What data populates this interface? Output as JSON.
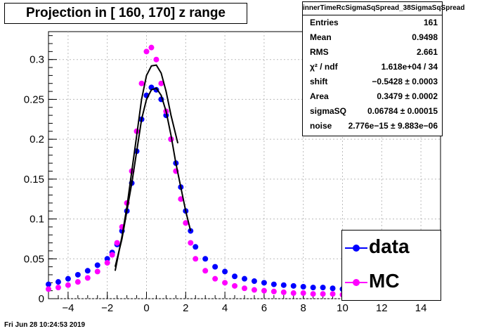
{
  "chart_data": {
    "type": "scatter",
    "title": "Projection in [ 160, 170] z range",
    "xlim": [
      -5,
      15
    ],
    "ylim": [
      0,
      0.335
    ],
    "x_ticks": [
      "−4",
      "−2",
      "0",
      "2",
      "4",
      "6",
      "8",
      "10",
      "12",
      "14"
    ],
    "x_tick_values": [
      -4,
      -2,
      0,
      2,
      4,
      6,
      8,
      10,
      12,
      14
    ],
    "y_ticks": [
      "0",
      "0.05",
      "0.1",
      "0.15",
      "0.2",
      "0.25",
      "0.3"
    ],
    "y_tick_values": [
      0,
      0.05,
      0.1,
      0.15,
      0.2,
      0.25,
      0.3
    ],
    "grid": true,
    "legend_position": "bottom-right",
    "series": [
      {
        "name": "data",
        "color": "#0000ff",
        "x": [
          -5,
          -4.5,
          -4,
          -3.5,
          -3,
          -2.5,
          -2,
          -1.75,
          -1.5,
          -1.25,
          -1,
          -0.75,
          -0.5,
          -0.25,
          0,
          0.25,
          0.5,
          0.75,
          1,
          1.25,
          1.5,
          1.75,
          2,
          2.25,
          2.5,
          3,
          3.5,
          4,
          4.5,
          5,
          5.5,
          6,
          6.5,
          7,
          7.5,
          8,
          8.5,
          9,
          9.5,
          10
        ],
        "values": [
          0.018,
          0.021,
          0.025,
          0.03,
          0.035,
          0.042,
          0.05,
          0.058,
          0.068,
          0.085,
          0.11,
          0.145,
          0.185,
          0.225,
          0.255,
          0.265,
          0.262,
          0.25,
          0.23,
          0.2,
          0.17,
          0.14,
          0.11,
          0.085,
          0.065,
          0.05,
          0.04,
          0.034,
          0.028,
          0.025,
          0.022,
          0.02,
          0.018,
          0.017,
          0.016,
          0.015,
          0.014,
          0.014,
          0.013,
          0.012
        ]
      },
      {
        "name": "MC",
        "color": "#ff00ff",
        "x": [
          -5,
          -4.5,
          -4,
          -3.5,
          -3,
          -2.5,
          -2,
          -1.75,
          -1.5,
          -1.25,
          -1,
          -0.75,
          -0.5,
          -0.25,
          0,
          0.25,
          0.5,
          0.75,
          1,
          1.25,
          1.5,
          1.75,
          2,
          2.25,
          2.5,
          3,
          3.5,
          4,
          4.5,
          5,
          5.5,
          6,
          6.5,
          7,
          7.5,
          8,
          8.5,
          9,
          9.5,
          10
        ],
        "values": [
          0.012,
          0.014,
          0.017,
          0.021,
          0.026,
          0.034,
          0.045,
          0.055,
          0.07,
          0.09,
          0.12,
          0.16,
          0.21,
          0.27,
          0.31,
          0.315,
          0.3,
          0.27,
          0.235,
          0.2,
          0.16,
          0.125,
          0.095,
          0.07,
          0.05,
          0.035,
          0.025,
          0.02,
          0.016,
          0.013,
          0.011,
          0.01,
          0.009,
          0.008,
          0.007,
          0.007,
          0.006,
          0.006,
          0.006,
          0.005
        ]
      },
      {
        "name": "",
        "kind": "fit",
        "color": "#000000",
        "x": [
          -1.6,
          -1.25,
          -1,
          -0.75,
          -0.5,
          -0.25,
          0,
          0.25,
          0.5,
          0.75,
          1,
          1.25,
          1.6
        ],
        "values": [
          0.035,
          0.078,
          0.115,
          0.16,
          0.205,
          0.25,
          0.28,
          0.292,
          0.293,
          0.283,
          0.26,
          0.23,
          0.195
        ]
      },
      {
        "name": "",
        "kind": "fit",
        "color": "#000000",
        "x": [
          -1.6,
          -1.25,
          -1,
          -0.75,
          -0.5,
          -0.25,
          0,
          0.25,
          0.5,
          0.75,
          1,
          1.25,
          1.5,
          1.75,
          2,
          2.25
        ],
        "values": [
          0.04,
          0.075,
          0.11,
          0.145,
          0.185,
          0.225,
          0.25,
          0.262,
          0.264,
          0.255,
          0.235,
          0.205,
          0.17,
          0.14,
          0.11,
          0.085
        ]
      }
    ]
  },
  "stats_box": {
    "title": "innerTimeRcSigmaSqSpread_38SigmaSqSpread",
    "rows": [
      {
        "key": "Entries",
        "value": "161"
      },
      {
        "key": "Mean",
        "value": "0.9498"
      },
      {
        "key": "RMS",
        "value": "2.661"
      },
      {
        "key": "χ² / ndf",
        "value": "1.618e+04 / 34"
      },
      {
        "key": "shift",
        "value": "−0.5428 ± 0.0003"
      },
      {
        "key": "Area",
        "value": "0.3479 ± 0.0002"
      },
      {
        "key": "sigmaSQ",
        "value": "0.06784 ± 0.00015"
      },
      {
        "key": "noise",
        "value": "2.776e−15 ± 9.883e−06"
      }
    ]
  },
  "legend": {
    "items": [
      {
        "label": "data",
        "color": "#0000ff"
      },
      {
        "label": "MC",
        "color": "#ff00ff"
      }
    ]
  },
  "footer": "Fri Jun 28 10:24:53 2019"
}
